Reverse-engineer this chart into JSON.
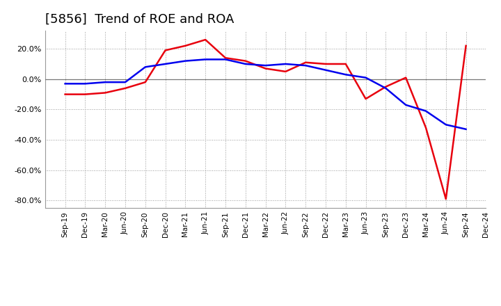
{
  "title": "[5856]  Trend of ROE and ROA",
  "ylim": [
    -0.85,
    0.32
  ],
  "yticks": [
    -0.8,
    -0.6,
    -0.4,
    -0.2,
    0.0,
    0.2
  ],
  "ytick_labels": [
    "-80.0%",
    "-60.0%",
    "-40.0%",
    "-20.0%",
    "0.0%",
    "20.0%"
  ],
  "x_labels": [
    "Sep-19",
    "Dec-19",
    "Mar-20",
    "Jun-20",
    "Sep-20",
    "Dec-20",
    "Mar-21",
    "Jun-21",
    "Sep-21",
    "Dec-21",
    "Mar-22",
    "Jun-22",
    "Sep-22",
    "Dec-22",
    "Mar-23",
    "Jun-23",
    "Sep-23",
    "Dec-23",
    "Mar-24",
    "Jun-24",
    "Sep-24",
    "Dec-24"
  ],
  "roe_values": [
    -0.1,
    -0.1,
    -0.09,
    -0.06,
    -0.02,
    0.19,
    0.22,
    0.26,
    0.14,
    0.12,
    0.07,
    0.05,
    0.11,
    0.1,
    0.1,
    -0.13,
    -0.05,
    0.01,
    -0.32,
    -0.79,
    0.22,
    null
  ],
  "roa_values": [
    -0.03,
    -0.03,
    -0.02,
    -0.02,
    0.08,
    0.1,
    0.12,
    0.13,
    0.13,
    0.1,
    0.09,
    0.1,
    0.09,
    0.06,
    0.03,
    0.01,
    -0.06,
    -0.17,
    -0.21,
    -0.3,
    -0.33,
    null
  ],
  "roe_color": "#e8000d",
  "roa_color": "#0000ee",
  "bg_color": "#ffffff",
  "grid_color": "#999999",
  "line_width": 1.8,
  "title_fontsize": 13
}
